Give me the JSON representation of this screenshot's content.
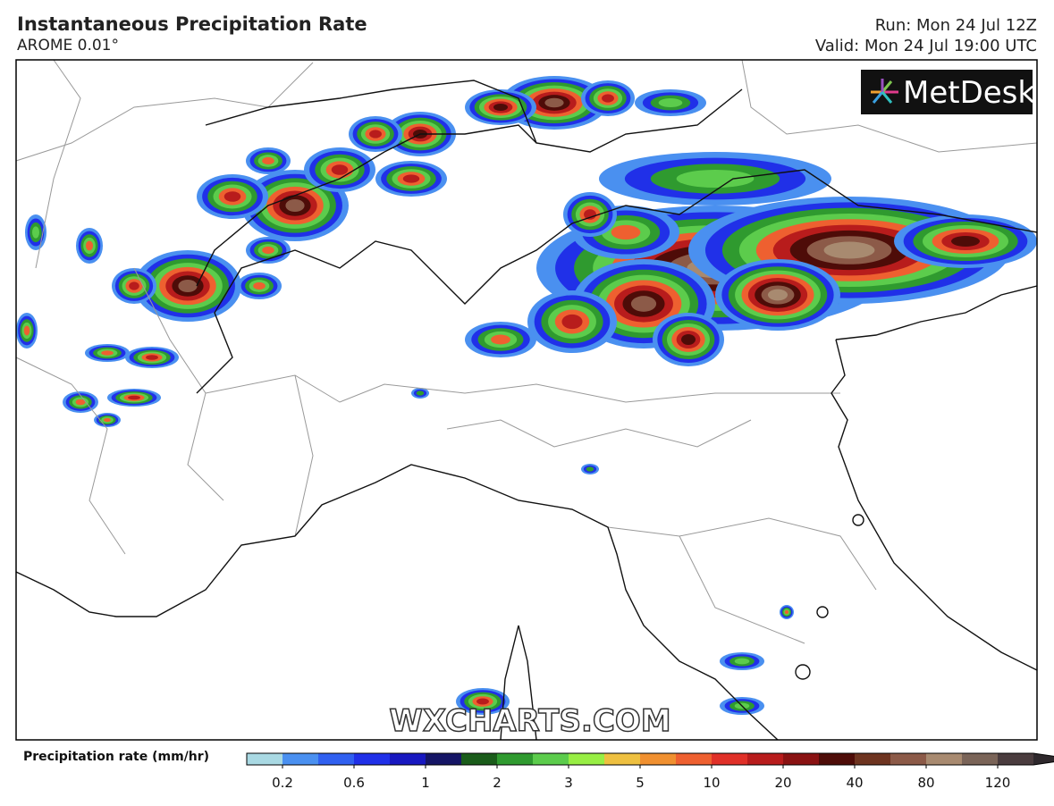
{
  "header": {
    "title": "Instantaneous Precipitation Rate",
    "subtitle": "AROME 0.01°",
    "run": "Run: Mon 24 Jul 12Z",
    "valid": "Valid: Mon 24 Jul 19:00 UTC"
  },
  "logo": "MetDesk",
  "watermark": "WXCHARTS.COM",
  "colorbar": {
    "label": "Precipitation rate (mm/hr)",
    "ticks": [
      0.2,
      0.6,
      1,
      2,
      3,
      5,
      10,
      20,
      40,
      80,
      120
    ],
    "colors": [
      "#a9d9e3",
      "#4a90f0",
      "#3060f0",
      "#2030e8",
      "#1818c0",
      "#151565",
      "#1a5c1a",
      "#2f9a2f",
      "#5ccc4c",
      "#98ee44",
      "#eec040",
      "#f09030",
      "#ee6030",
      "#e03028",
      "#b81c1c",
      "#8a1212",
      "#4e0c08",
      "#6e3420",
      "#8c5a48",
      "#a88a70",
      "#7a6458",
      "#4a3c3e",
      "#2e282c"
    ]
  }
}
